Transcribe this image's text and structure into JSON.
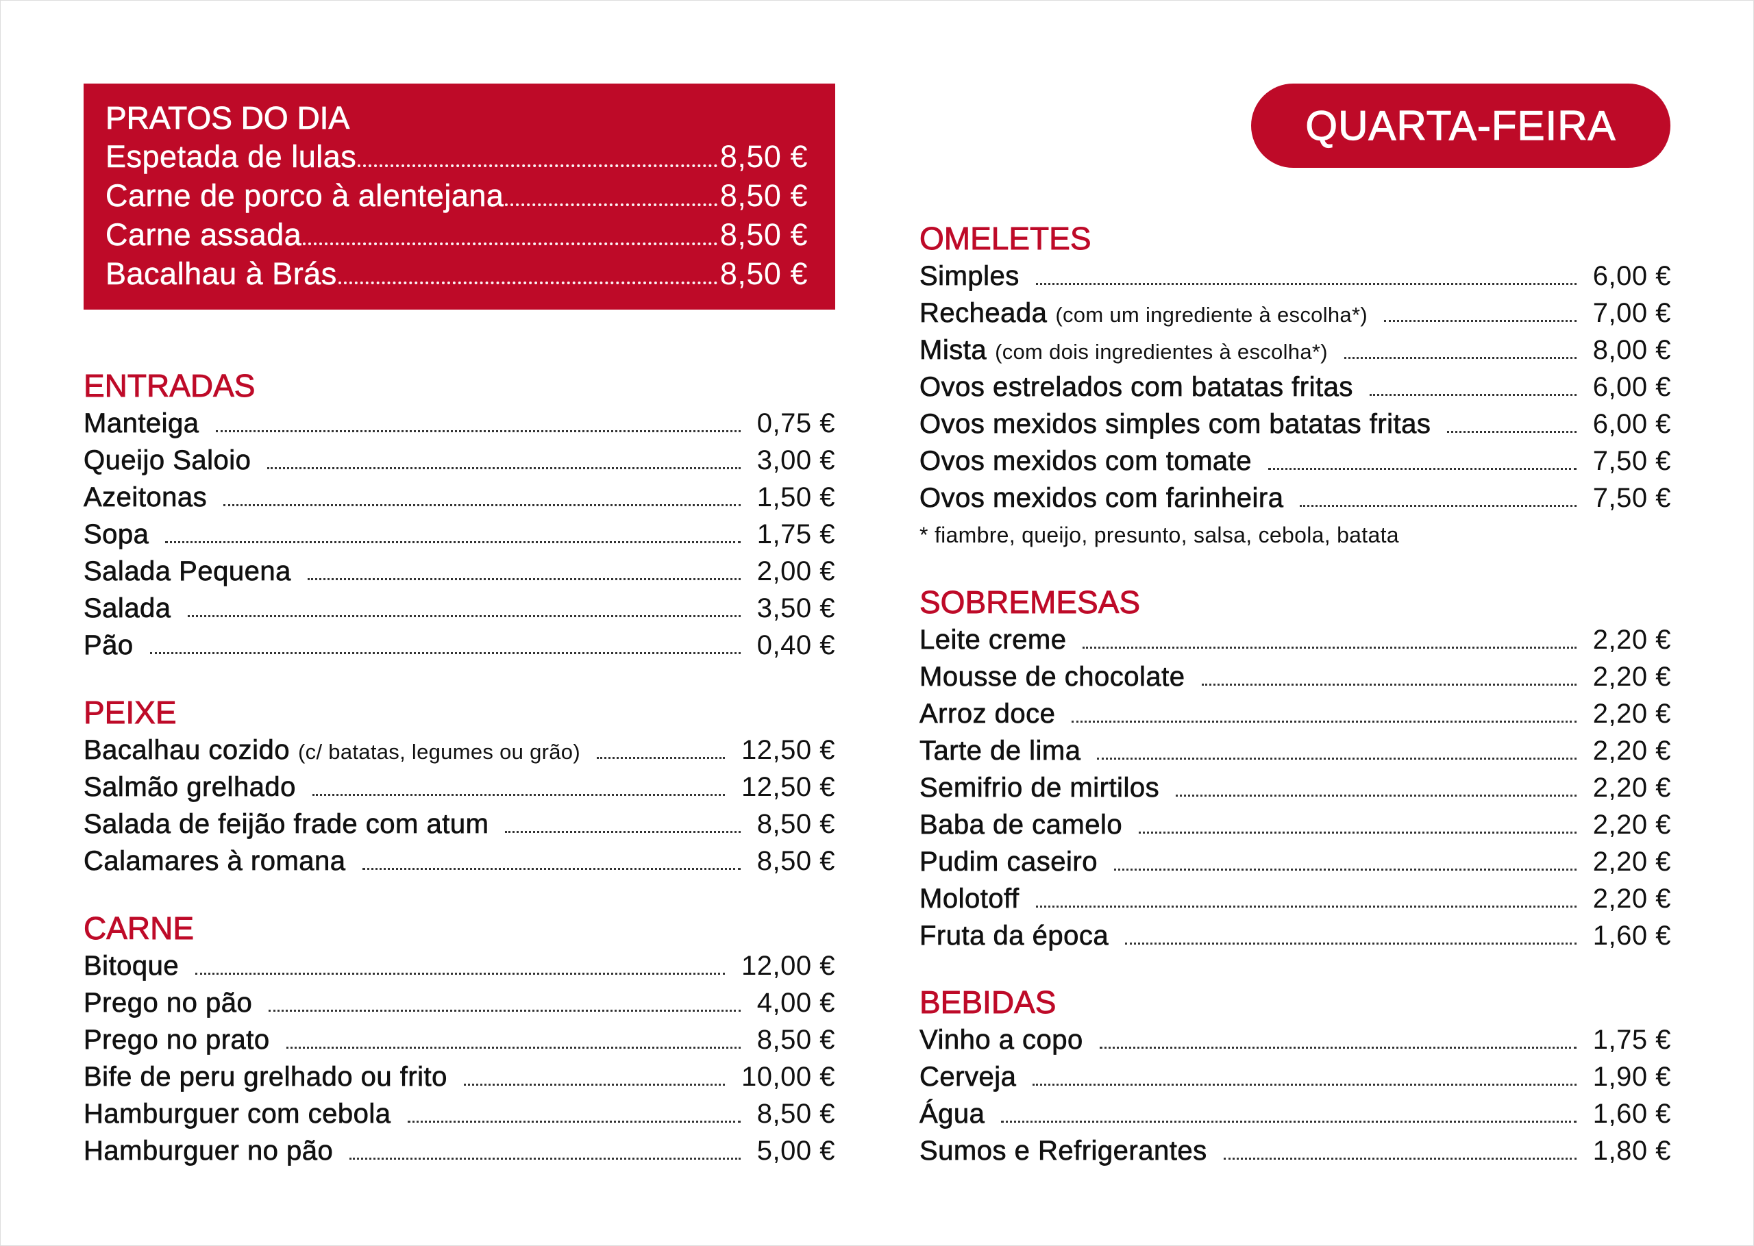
{
  "colors": {
    "accent": "#BE0A28",
    "text": "#111111",
    "background": "#FFFFFF"
  },
  "day": "QUARTA-FEIRA",
  "pratos_do_dia": {
    "title": "PRATOS DO DIA",
    "items": [
      {
        "name": "Espetada de lulas",
        "price": "8,50 €"
      },
      {
        "name": "Carne de porco à alentejana",
        "price": "8,50 €"
      },
      {
        "name": "Carne assada",
        "price": "8,50 €"
      },
      {
        "name": "Bacalhau à Brás",
        "price": "8,50 €"
      }
    ]
  },
  "sections": {
    "entradas": {
      "title": "ENTRADAS",
      "items": [
        {
          "name": "Manteiga",
          "price": "0,75 €"
        },
        {
          "name": "Queijo Saloio",
          "price": "3,00 €"
        },
        {
          "name": "Azeitonas",
          "price": "1,50 €"
        },
        {
          "name": "Sopa",
          "price": "1,75 €"
        },
        {
          "name": "Salada Pequena",
          "price": "2,00 €"
        },
        {
          "name": "Salada",
          "price": "3,50 €"
        },
        {
          "name": "Pão",
          "price": "0,40 €"
        }
      ]
    },
    "peixe": {
      "title": "PEIXE",
      "items": [
        {
          "name": "Bacalhau cozido",
          "note": "(c/ batatas, legumes ou grão)",
          "price": "12,50 €"
        },
        {
          "name": "Salmão grelhado",
          "price": "12,50 €"
        },
        {
          "name": "Salada de feijão frade com atum",
          "price": "8,50 €"
        },
        {
          "name": "Calamares à romana",
          "price": "8,50 €"
        }
      ]
    },
    "carne": {
      "title": "CARNE",
      "items": [
        {
          "name": "Bitoque",
          "price": "12,00 €"
        },
        {
          "name": "Prego no pão",
          "price": "4,00 €"
        },
        {
          "name": "Prego no prato",
          "price": "8,50 €"
        },
        {
          "name": "Bife de peru grelhado ou frito",
          "price": "10,00 €"
        },
        {
          "name": "Hamburguer com cebola",
          "price": "8,50 €"
        },
        {
          "name": "Hamburguer no pão",
          "price": "5,00 €"
        }
      ]
    },
    "omeletes": {
      "title": "OMELETES",
      "items": [
        {
          "name": "Simples",
          "price": "6,00 €"
        },
        {
          "name": "Recheada",
          "note": "(com um ingrediente à escolha*)",
          "price": "7,00 €"
        },
        {
          "name": "Mista",
          "note": "(com dois ingredientes à escolha*)",
          "price": "8,00 €"
        },
        {
          "name": "Ovos estrelados com batatas fritas",
          "price": "6,00 €"
        },
        {
          "name": "Ovos mexidos simples com batatas fritas",
          "price": "6,00 €"
        },
        {
          "name": "Ovos mexidos com tomate",
          "price": "7,50 €"
        },
        {
          "name": "Ovos mexidos com farinheira",
          "price": "7,50 €"
        }
      ],
      "footnote": "* fiambre, queijo, presunto, salsa, cebola, batata"
    },
    "sobremesas": {
      "title": "SOBREMESAS",
      "items": [
        {
          "name": "Leite creme",
          "price": "2,20 €"
        },
        {
          "name": "Mousse de chocolate",
          "price": "2,20 €"
        },
        {
          "name": "Arroz doce",
          "price": "2,20 €"
        },
        {
          "name": "Tarte de lima",
          "price": "2,20 €"
        },
        {
          "name": "Semifrio de mirtilos",
          "price": "2,20 €"
        },
        {
          "name": "Baba de camelo",
          "price": "2,20 €"
        },
        {
          "name": "Pudim caseiro",
          "price": "2,20 €"
        },
        {
          "name": "Molotoff",
          "price": "2,20 €"
        },
        {
          "name": "Fruta da época",
          "price": "1,60 €"
        }
      ]
    },
    "bebidas": {
      "title": "BEBIDAS",
      "items": [
        {
          "name": "Vinho a copo",
          "price": "1,75 €"
        },
        {
          "name": "Cerveja",
          "price": "1,90 €"
        },
        {
          "name": "Água",
          "price": "1,60 €"
        },
        {
          "name": "Sumos e Refrigerantes",
          "price": "1,80 €"
        }
      ]
    }
  }
}
